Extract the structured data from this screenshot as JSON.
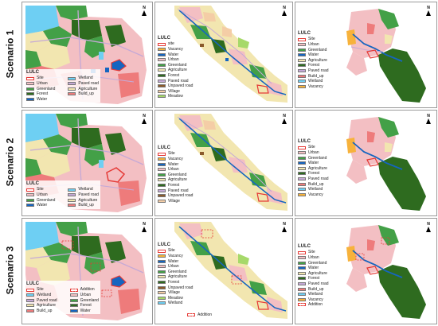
{
  "scenarios": [
    {
      "label": "Scenario 1"
    },
    {
      "label": "Scenario 2"
    },
    {
      "label": "Scenario 3"
    }
  ],
  "north_letter": "N",
  "colors": {
    "site": "#e53935",
    "vacancy": "#f7b23b",
    "water": "#1565c0",
    "urban": "#f3bfc3",
    "greenland": "#43a047",
    "agriculture": "#f2e6b0",
    "forest": "#2e6b1f",
    "paved_road": "#c5a9d6",
    "unpaved_road": "#8a5a2b",
    "village": "#f4cda6",
    "meadow": "#a6d96a",
    "wetland": "#6ecff3",
    "build_up": "#ee7b7b"
  },
  "legends": {
    "s1_left": {
      "title": "LULC",
      "items": [
        {
          "label": "Site",
          "color": "site"
        },
        {
          "label": "Wetland",
          "color": "wetland"
        },
        {
          "label": "Urban",
          "color": "urban"
        },
        {
          "label": "Paved road",
          "color": "paved_road"
        },
        {
          "label": "Greenland",
          "color": "greenland"
        },
        {
          "label": "Agriculture",
          "color": "agriculture"
        },
        {
          "label": "Forest",
          "color": "forest"
        },
        {
          "label": "Build_up",
          "color": "build_up"
        },
        {
          "label": "Water",
          "color": "water"
        }
      ]
    },
    "s1_mid": {
      "title": "LULC",
      "items": [
        {
          "label": "site",
          "color": "site"
        },
        {
          "label": "Vacancy",
          "color": "vacancy"
        },
        {
          "label": "Water",
          "color": "water"
        },
        {
          "label": "Urban",
          "color": "urban"
        },
        {
          "label": "Greenland",
          "color": "greenland"
        },
        {
          "label": "Agriculture",
          "color": "agriculture"
        },
        {
          "label": "Forest",
          "color": "forest"
        },
        {
          "label": "Paved road",
          "color": "paved_road"
        },
        {
          "label": "Unpaved road",
          "color": "unpaved_road"
        },
        {
          "label": "Village",
          "color": "village"
        },
        {
          "label": "Meadow",
          "color": "meadow"
        }
      ]
    },
    "s1_right": {
      "title": "LULC",
      "items": [
        {
          "label": "Site",
          "color": "site"
        },
        {
          "label": "Urban",
          "color": "urban"
        },
        {
          "label": "Greenland",
          "color": "greenland"
        },
        {
          "label": "Water",
          "color": "water"
        },
        {
          "label": "Agriculture",
          "color": "agriculture"
        },
        {
          "label": "Forest",
          "color": "forest"
        },
        {
          "label": "Paved road",
          "color": "paved_road"
        },
        {
          "label": "Build_up",
          "color": "build_up"
        },
        {
          "label": "Wetland",
          "color": "wetland"
        },
        {
          "label": "Vacancy",
          "color": "vacancy"
        }
      ]
    },
    "s2_left": {
      "title": "LULC",
      "items": [
        {
          "label": "Site",
          "color": "site"
        },
        {
          "label": "Wetland",
          "color": "wetland"
        },
        {
          "label": "Urban",
          "color": "urban"
        },
        {
          "label": "Paved road",
          "color": "paved_road"
        },
        {
          "label": "Greenland",
          "color": "greenland"
        },
        {
          "label": "Agriculture",
          "color": "agriculture"
        },
        {
          "label": "Water",
          "color": "water"
        },
        {
          "label": "Build_up",
          "color": "build_up"
        }
      ]
    },
    "s2_mid": {
      "title": "LULC",
      "items": [
        {
          "label": "Site",
          "color": "site"
        },
        {
          "label": "Vacancy",
          "color": "vacancy"
        },
        {
          "label": "Water",
          "color": "water"
        },
        {
          "label": "Urban",
          "color": "urban"
        },
        {
          "label": "Greenland",
          "color": "greenland"
        },
        {
          "label": "Agriculture",
          "color": "agriculture"
        },
        {
          "label": "Forest",
          "color": "forest"
        },
        {
          "label": "Paved road",
          "color": "paved_road"
        },
        {
          "label": "Unpaved road",
          "color": "unpaved_road"
        },
        {
          "label": "Village",
          "color": "village"
        }
      ]
    },
    "s2_right": {
      "title": "LULC",
      "items": [
        {
          "label": "Site",
          "color": "site"
        },
        {
          "label": "Urban",
          "color": "urban"
        },
        {
          "label": "Greenland",
          "color": "greenland"
        },
        {
          "label": "Water",
          "color": "water"
        },
        {
          "label": "Agriculture",
          "color": "agriculture"
        },
        {
          "label": "Forest",
          "color": "forest"
        },
        {
          "label": "Paved road",
          "color": "paved_road"
        },
        {
          "label": "Build_up",
          "color": "build_up"
        },
        {
          "label": "Wetland",
          "color": "wetland"
        },
        {
          "label": "Vacancy",
          "color": "vacancy"
        }
      ]
    },
    "s3_left": {
      "title": "LULC",
      "items": [
        {
          "label": "Site",
          "color": "site"
        },
        {
          "label": "Addition",
          "color": "addition"
        },
        {
          "label": "Wetland",
          "color": "wetland"
        },
        {
          "label": "Urban",
          "color": "urban"
        },
        {
          "label": "Paved road",
          "color": "paved_road"
        },
        {
          "label": "Greenland",
          "color": "greenland"
        },
        {
          "label": "Agriculture",
          "color": "agriculture"
        },
        {
          "label": "Forest",
          "color": "forest"
        },
        {
          "label": "Build_up",
          "color": "build_up"
        },
        {
          "label": "Water",
          "color": "water"
        }
      ]
    },
    "s3_mid": {
      "title": "LULC",
      "items": [
        {
          "label": "Site",
          "color": "site"
        },
        {
          "label": "Vacancy",
          "color": "vacancy"
        },
        {
          "label": "Water",
          "color": "water"
        },
        {
          "label": "Urban",
          "color": "urban"
        },
        {
          "label": "Greenland",
          "color": "greenland"
        },
        {
          "label": "Agriculture",
          "color": "agriculture"
        },
        {
          "label": "Forest",
          "color": "forest"
        },
        {
          "label": "Unpaved road",
          "color": "unpaved_road"
        },
        {
          "label": "Village",
          "color": "village"
        },
        {
          "label": "Meadow",
          "color": "meadow"
        },
        {
          "label": "Wetland",
          "color": "wetland"
        }
      ],
      "addition_label": "Addition"
    },
    "s3_right": {
      "title": "LULC",
      "items": [
        {
          "label": "Site",
          "color": "site"
        },
        {
          "label": "Urban",
          "color": "urban"
        },
        {
          "label": "Greenland",
          "color": "greenland"
        },
        {
          "label": "Water",
          "color": "water"
        },
        {
          "label": "Agriculture",
          "color": "agriculture"
        },
        {
          "label": "Forest",
          "color": "forest"
        },
        {
          "label": "Paved road",
          "color": "paved_road"
        },
        {
          "label": "Build_up",
          "color": "build_up"
        },
        {
          "label": "Wetland",
          "color": "wetland"
        },
        {
          "label": "Vacancy",
          "color": "vacancy"
        },
        {
          "label": "Addition",
          "color": "addition"
        }
      ]
    }
  }
}
